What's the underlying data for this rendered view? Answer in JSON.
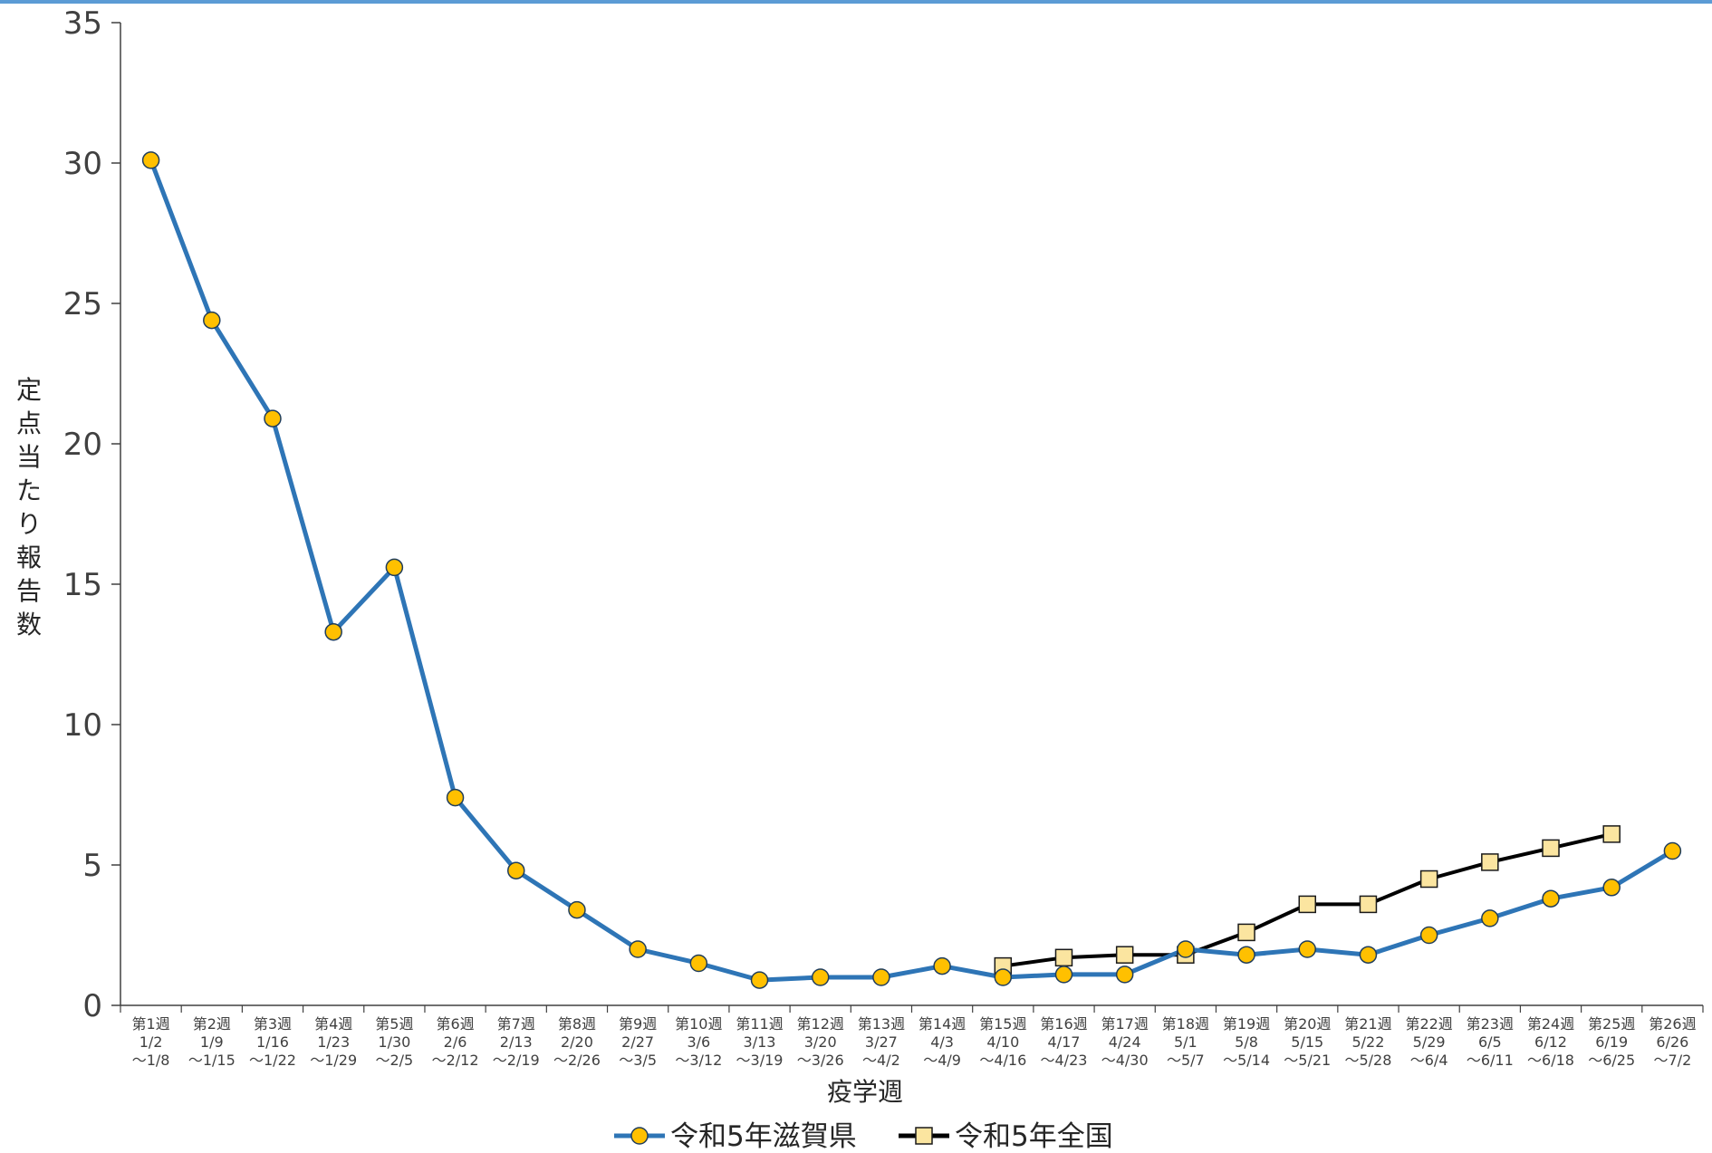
{
  "chart_data": {
    "type": "line",
    "xlabel": "疫学週",
    "ylabel": "定点当たり報告数",
    "ylim": [
      0,
      35
    ],
    "yticks": [
      0,
      5,
      10,
      15,
      20,
      25,
      30,
      35
    ],
    "grid": false,
    "legend_position": "bottom",
    "categories": [
      {
        "week": "第1週",
        "start": "1/2",
        "end": "～1/8"
      },
      {
        "week": "第2週",
        "start": "1/9",
        "end": "～1/15"
      },
      {
        "week": "第3週",
        "start": "1/16",
        "end": "～1/22"
      },
      {
        "week": "第4週",
        "start": "1/23",
        "end": "～1/29"
      },
      {
        "week": "第5週",
        "start": "1/30",
        "end": "～2/5"
      },
      {
        "week": "第6週",
        "start": "2/6",
        "end": "～2/12"
      },
      {
        "week": "第7週",
        "start": "2/13",
        "end": "～2/19"
      },
      {
        "week": "第8週",
        "start": "2/20",
        "end": "～2/26"
      },
      {
        "week": "第9週",
        "start": "2/27",
        "end": "～3/5"
      },
      {
        "week": "第10週",
        "start": "3/6",
        "end": "～3/12"
      },
      {
        "week": "第11週",
        "start": "3/13",
        "end": "～3/19"
      },
      {
        "week": "第12週",
        "start": "3/20",
        "end": "～3/26"
      },
      {
        "week": "第13週",
        "start": "3/27",
        "end": "～4/2"
      },
      {
        "week": "第14週",
        "start": "4/3",
        "end": "～4/9"
      },
      {
        "week": "第15週",
        "start": "4/10",
        "end": "～4/16"
      },
      {
        "week": "第16週",
        "start": "4/17",
        "end": "～4/23"
      },
      {
        "week": "第17週",
        "start": "4/24",
        "end": "～4/30"
      },
      {
        "week": "第18週",
        "start": "5/1",
        "end": "～5/7"
      },
      {
        "week": "第19週",
        "start": "5/8",
        "end": "～5/14"
      },
      {
        "week": "第20週",
        "start": "5/15",
        "end": "～5/21"
      },
      {
        "week": "第21週",
        "start": "5/22",
        "end": "～5/28"
      },
      {
        "week": "第22週",
        "start": "5/29",
        "end": "～6/4"
      },
      {
        "week": "第23週",
        "start": "6/5",
        "end": "～6/11"
      },
      {
        "week": "第24週",
        "start": "6/12",
        "end": "～6/18"
      },
      {
        "week": "第25週",
        "start": "6/19",
        "end": "～6/25"
      },
      {
        "week": "第26週",
        "start": "6/26",
        "end": "～7/2"
      }
    ],
    "series": [
      {
        "name": "令和5年滋賀県",
        "line_color": "#2e75b6",
        "marker": "circle",
        "marker_fill": "#ffc000",
        "values": [
          30.1,
          24.4,
          20.9,
          13.3,
          15.6,
          7.4,
          4.8,
          3.4,
          2.0,
          1.5,
          0.9,
          1.0,
          1.0,
          1.4,
          1.0,
          1.1,
          1.1,
          2.0,
          1.8,
          2.0,
          1.8,
          2.5,
          3.1,
          3.8,
          4.2,
          5.5
        ]
      },
      {
        "name": "令和5年全国",
        "line_color": "#000000",
        "marker": "square",
        "marker_fill": "#fbe5a0",
        "values": [
          null,
          null,
          null,
          null,
          null,
          null,
          null,
          null,
          null,
          null,
          null,
          null,
          null,
          null,
          1.4,
          1.7,
          1.8,
          1.8,
          2.6,
          3.6,
          3.6,
          4.5,
          5.1,
          5.6,
          6.1,
          null
        ]
      }
    ]
  }
}
